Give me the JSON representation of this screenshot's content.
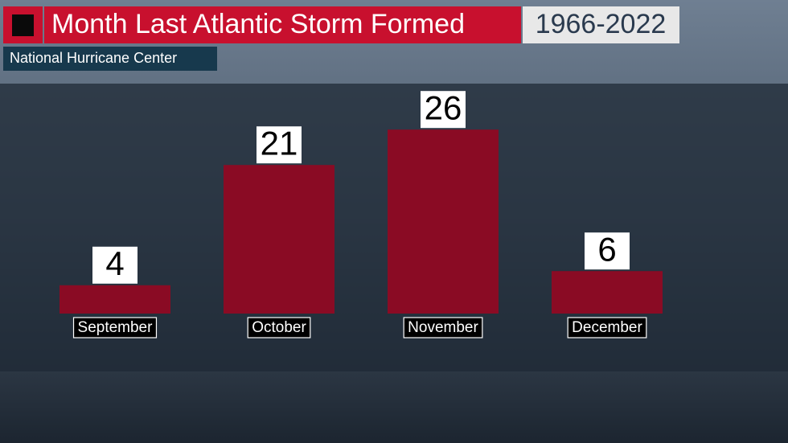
{
  "chart_data": {
    "type": "bar",
    "title": "Month Last Atlantic Storm Formed",
    "subtitle": "1966-2022",
    "source": "National Hurricane Center",
    "categories": [
      "September",
      "October",
      "November",
      "December"
    ],
    "values": [
      4,
      21,
      26,
      6
    ],
    "color": "#8a0b24"
  }
}
